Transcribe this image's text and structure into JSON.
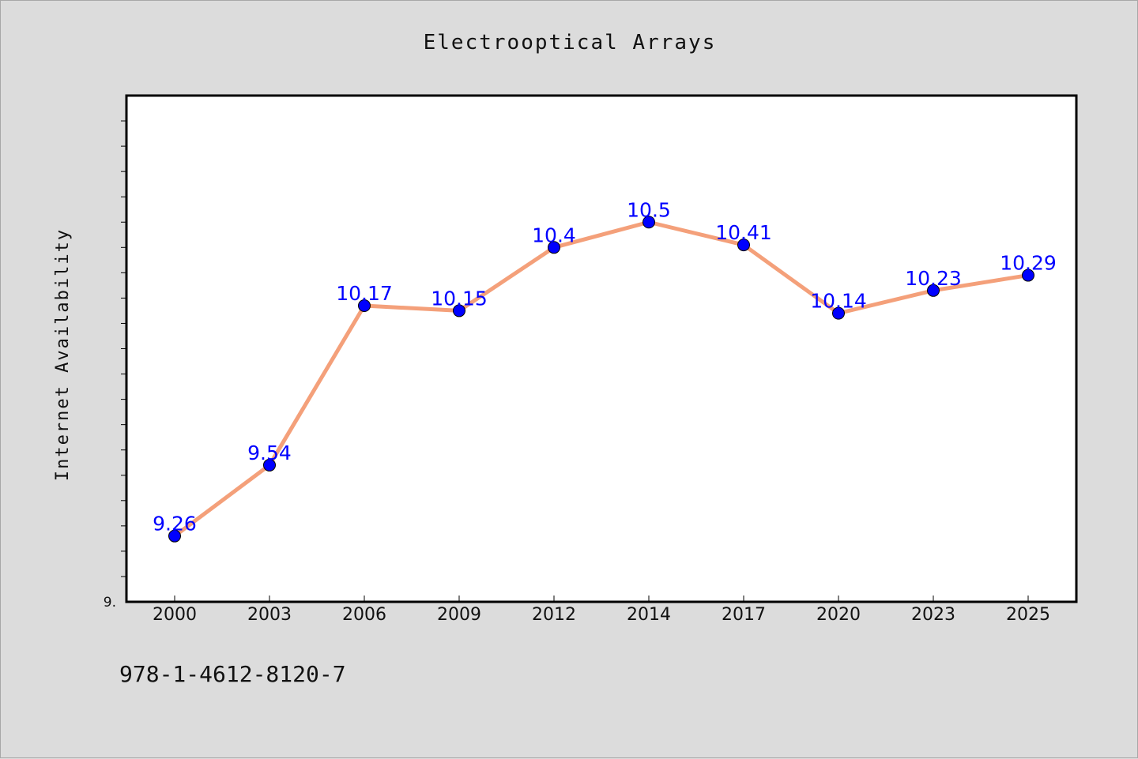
{
  "chart_data": {
    "type": "line",
    "title": "Electrooptical Arrays",
    "xlabel": "",
    "ylabel": "Internet Availability",
    "categories": [
      "2000",
      "2003",
      "2006",
      "2009",
      "2012",
      "2014",
      "2017",
      "2020",
      "2023",
      "2025"
    ],
    "series": [
      {
        "values": [
          9.26,
          9.54,
          10.17,
          10.15,
          10.4,
          10.5,
          10.41,
          10.14,
          10.23,
          10.29
        ],
        "line_color": "#f4a07a",
        "marker_color": "#0000ff"
      }
    ],
    "data_labels": [
      "9.26",
      "9.54",
      "10.17",
      "10.15",
      "10.4",
      "10.5",
      "10.41",
      "10.14",
      "10.23",
      "10.29"
    ],
    "ytick_label": "9.",
    "ylim": [
      9.0,
      11.0
    ],
    "grid": false,
    "legend": "none"
  },
  "footer": {
    "isbn": "978-1-4612-8120-7"
  },
  "colors": {
    "background": "#dcdcdc",
    "plot_background": "#ffffff",
    "line": "#f4a07a",
    "marker": "#0000ff",
    "data_label": "#0000ff"
  }
}
